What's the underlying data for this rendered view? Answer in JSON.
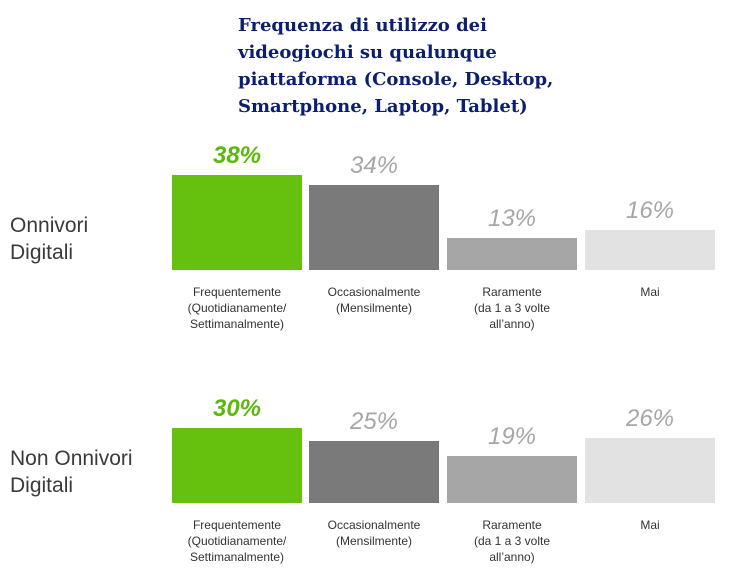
{
  "chart_data": {
    "type": "bar",
    "title": "Frequenza di utilizzo dei videogiochi su qualunque piattaforma (Console, Desktop, Smartphone, Laptop, Tablet)",
    "categories": [
      "Frequentemente\n(Quotidianamente/\nSettimanalmente)",
      "Occasionalmente\n(Mensilmente)",
      "Raramente\n(da 1 a 3 volte\nall’anno)",
      "Mai"
    ],
    "colors": [
      "#66c10f",
      "#7a7a7a",
      "#a6a6a6",
      "#e2e2e2"
    ],
    "label_colors": [
      "#5cb80c",
      "#a6a6a6",
      "#a6a6a6",
      "#a6a6a6"
    ],
    "groups": [
      {
        "name": "Onnivori\nDigitali",
        "values": [
          38,
          34,
          13,
          16
        ],
        "value_labels": [
          "38%",
          "34%",
          "13%",
          "16%"
        ]
      },
      {
        "name": "Non Onnivori\nDigitali",
        "values": [
          30,
          25,
          19,
          26
        ],
        "value_labels": [
          "30%",
          "25%",
          "19%",
          "26%"
        ]
      }
    ]
  }
}
